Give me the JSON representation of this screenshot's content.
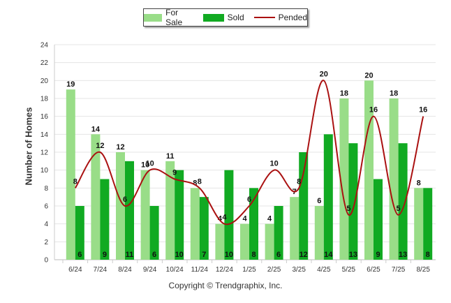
{
  "chart_data": {
    "type": "bar",
    "categories": [
      "6/24",
      "7/24",
      "8/24",
      "9/24",
      "10/24",
      "11/24",
      "12/24",
      "1/25",
      "2/25",
      "3/25",
      "4/25",
      "5/25",
      "6/25",
      "7/25",
      "8/25"
    ],
    "series": [
      {
        "name": "For Sale",
        "type": "bar",
        "color": "#99dd88",
        "values": [
          19,
          14,
          12,
          10,
          11,
          8,
          4,
          4,
          4,
          7,
          6,
          18,
          20,
          18,
          8
        ]
      },
      {
        "name": "Sold",
        "type": "bar",
        "color": "#11aa22",
        "values": [
          6,
          9,
          11,
          6,
          10,
          7,
          10,
          8,
          6,
          12,
          14,
          13,
          9,
          13,
          8
        ]
      },
      {
        "name": "Pended",
        "type": "line",
        "color": "#aa1111",
        "values": [
          8,
          12,
          6,
          10,
          9,
          8,
          4,
          6,
          10,
          8,
          20,
          5,
          16,
          5,
          16
        ]
      }
    ],
    "ylabel": "Number of Homes",
    "xlabel": "",
    "ylim": [
      0,
      24
    ],
    "yticks": [
      0,
      2,
      4,
      6,
      8,
      10,
      12,
      14,
      16,
      18,
      20,
      22,
      24
    ],
    "grid": true,
    "legend_position": "top-center"
  },
  "legend": [
    {
      "label": "For Sale",
      "color": "#99dd88",
      "kind": "bar"
    },
    {
      "label": "Sold",
      "color": "#11aa22",
      "kind": "bar"
    },
    {
      "label": "Pended",
      "color": "#aa1111",
      "kind": "line"
    }
  ],
  "footer": {
    "copyright": "Copyright © Trendgraphix, Inc."
  }
}
